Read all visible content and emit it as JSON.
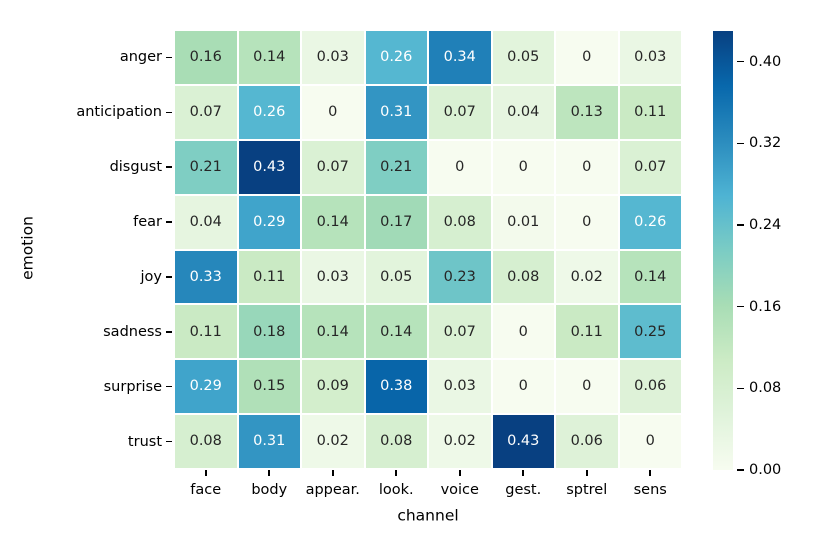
{
  "chart_data": {
    "type": "heatmap",
    "xlabel": "channel",
    "ylabel": "emotion",
    "rows": [
      "anger",
      "anticipation",
      "disgust",
      "fear",
      "joy",
      "sadness",
      "surprise",
      "trust"
    ],
    "columns": [
      "face",
      "body",
      "appear.",
      "look.",
      "voice",
      "gest.",
      "sptrel",
      "sens"
    ],
    "values": [
      [
        0.16,
        0.14,
        0.03,
        0.26,
        0.34,
        0.05,
        0,
        0.03
      ],
      [
        0.07,
        0.26,
        0,
        0.31,
        0.07,
        0.04,
        0.13,
        0.11
      ],
      [
        0.21,
        0.43,
        0.07,
        0.21,
        0,
        0,
        0,
        0.07
      ],
      [
        0.04,
        0.29,
        0.14,
        0.17,
        0.08,
        0.01,
        0,
        0.26
      ],
      [
        0.33,
        0.11,
        0.03,
        0.05,
        0.23,
        0.08,
        0.02,
        0.14
      ],
      [
        0.11,
        0.18,
        0.14,
        0.14,
        0.07,
        0,
        0.11,
        0.25
      ],
      [
        0.29,
        0.15,
        0.09,
        0.38,
        0.03,
        0,
        0,
        0.06
      ],
      [
        0.08,
        0.31,
        0.02,
        0.08,
        0.02,
        0.43,
        0.06,
        0
      ]
    ],
    "vmin": 0,
    "vmax": 0.43,
    "colormap": "GnBu",
    "colormap_stops": [
      "#f7fcf0",
      "#e0f3db",
      "#ccebc5",
      "#a8ddb5",
      "#7bccc4",
      "#4eb3d3",
      "#2b8cbe",
      "#0868ac",
      "#084081"
    ],
    "colorbar_ticks": [
      {
        "label": "0.40",
        "value": 0.4
      },
      {
        "label": "0.32",
        "value": 0.32
      },
      {
        "label": "0.24",
        "value": 0.24
      },
      {
        "label": "0.16",
        "value": 0.16
      },
      {
        "label": "0.08",
        "value": 0.08
      },
      {
        "label": "0.00",
        "value": 0.0
      }
    ],
    "annotation_colors": {
      "dark": "#262626",
      "light": "#ffffff"
    },
    "legend_position": "right",
    "grid": false
  }
}
